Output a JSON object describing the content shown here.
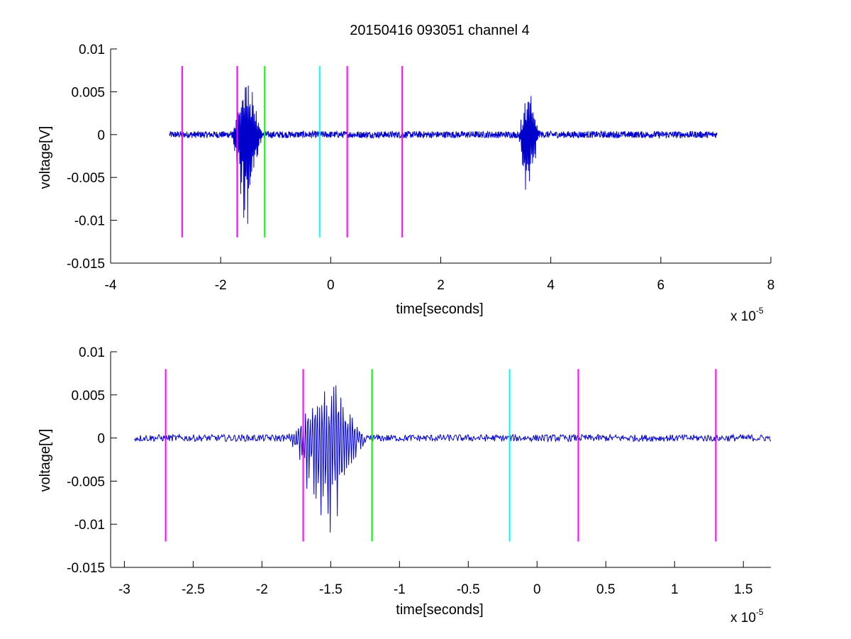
{
  "figure": {
    "title": "20150416 093051 channel 4"
  },
  "chart_data": [
    {
      "type": "line",
      "title": "20150416 093051 channel 4",
      "xlabel": "time[seconds]",
      "ylabel": "voltage[V]",
      "x_multiplier_base": "x 10",
      "x_multiplier_exp": "-5",
      "xlim": [
        -4,
        8
      ],
      "ylim": [
        -0.015,
        0.01
      ],
      "xticks": [
        -4,
        -2,
        0,
        2,
        4,
        6,
        8
      ],
      "xtick_labels": [
        "-4",
        "-2",
        "0",
        "2",
        "4",
        "6",
        "8"
      ],
      "yticks": [
        0.01,
        0.005,
        0,
        -0.005,
        -0.01,
        -0.015
      ],
      "ytick_labels": [
        "0.01",
        "0.005",
        "0",
        "-0.005",
        "-0.01",
        "-0.015"
      ],
      "grid": false,
      "signal": {
        "color": "#0000cc",
        "x_start": -2.93,
        "x_end": 7.02,
        "points": 1800,
        "noise_amplitude": 0.0004,
        "bursts": [
          {
            "center": -1.52,
            "width": 0.32,
            "amplitude": 0.0105
          },
          {
            "center": 3.6,
            "width": 0.22,
            "amplitude": 0.0082
          }
        ]
      },
      "markers": [
        {
          "x": -2.7,
          "y_range": [
            -0.012,
            0.008
          ],
          "color": "#ff00ff"
        },
        {
          "x": -1.7,
          "y_range": [
            -0.012,
            0.008
          ],
          "color": "#ff00ff"
        },
        {
          "x": -1.2,
          "y_range": [
            -0.012,
            0.008
          ],
          "color": "#00ff00"
        },
        {
          "x": -0.2,
          "y_range": [
            -0.012,
            0.008
          ],
          "color": "#00ffff"
        },
        {
          "x": 0.3,
          "y_range": [
            -0.012,
            0.008
          ],
          "color": "#ff00ff"
        },
        {
          "x": 1.3,
          "y_range": [
            -0.012,
            0.008
          ],
          "color": "#ff00ff"
        }
      ]
    },
    {
      "type": "line",
      "title": "",
      "xlabel": "time[seconds]",
      "ylabel": "voltage[V]",
      "x_multiplier_base": "x 10",
      "x_multiplier_exp": "-5",
      "xlim": [
        -3.1,
        1.7
      ],
      "ylim": [
        -0.015,
        0.01
      ],
      "xticks": [
        -3,
        -2.5,
        -2,
        -1.5,
        -1,
        -0.5,
        0,
        0.5,
        1,
        1.5
      ],
      "xtick_labels": [
        "-3",
        "-2.5",
        "-2",
        "-1.5",
        "-1",
        "-0.5",
        "0",
        "0.5",
        "1",
        "1.5"
      ],
      "yticks": [
        0.01,
        0.005,
        0,
        -0.005,
        -0.01,
        -0.015
      ],
      "ytick_labels": [
        "0.01",
        "0.005",
        "0",
        "-0.005",
        "-0.01",
        "-0.015"
      ],
      "grid": false,
      "signal": {
        "color": "#0000cc",
        "x_start": -2.93,
        "x_end": 1.7,
        "points": 900,
        "noise_amplitude": 0.0004,
        "bursts": [
          {
            "center": -1.52,
            "width": 0.32,
            "amplitude": 0.011
          }
        ]
      },
      "markers": [
        {
          "x": -2.7,
          "y_range": [
            -0.012,
            0.008
          ],
          "color": "#ff00ff"
        },
        {
          "x": -1.7,
          "y_range": [
            -0.012,
            0.008
          ],
          "color": "#ff00ff"
        },
        {
          "x": -1.2,
          "y_range": [
            -0.012,
            0.008
          ],
          "color": "#00ff00"
        },
        {
          "x": -0.2,
          "y_range": [
            -0.012,
            0.008
          ],
          "color": "#00ffff"
        },
        {
          "x": 0.3,
          "y_range": [
            -0.012,
            0.008
          ],
          "color": "#ff00ff"
        },
        {
          "x": 1.3,
          "y_range": [
            -0.012,
            0.008
          ],
          "color": "#ff00ff"
        }
      ]
    }
  ]
}
